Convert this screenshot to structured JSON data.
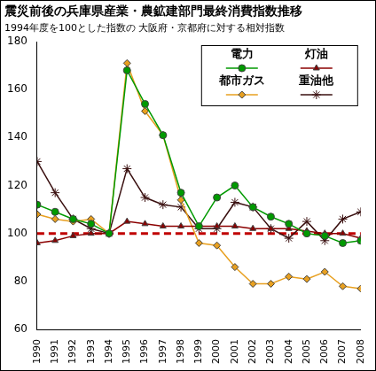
{
  "chart_data": {
    "type": "line",
    "title": "震災前後の兵庫県産業・農鉱建部門最終消費指数推移",
    "subtitle": "1994年度を100とした指数の 大阪府・京都府に対する相対指数",
    "categories": [
      "1990",
      "1991",
      "1992",
      "1993",
      "1994",
      "1995",
      "1996",
      "1997",
      "1998",
      "1999",
      "2000",
      "2001",
      "2002",
      "2003",
      "2004",
      "2005",
      "2006",
      "2007",
      "2008"
    ],
    "series": [
      {
        "name": "電力",
        "color": "#009a00",
        "marker": "circle",
        "values": [
          112,
          109,
          106,
          104,
          100,
          168,
          154,
          141,
          117,
          103,
          115,
          120,
          111,
          107,
          104,
          100,
          99,
          96,
          97
        ]
      },
      {
        "name": "灯油",
        "color": "#8b0000",
        "marker": "triangle",
        "values": [
          96,
          97,
          99,
          100,
          100,
          105,
          104,
          103,
          103,
          103,
          103,
          103,
          102,
          102,
          102,
          101,
          100,
          100,
          98
        ]
      },
      {
        "name": "都市ガス",
        "color": "#e8a020",
        "marker": "diamond",
        "values": [
          108,
          106,
          105,
          106,
          100,
          171,
          151,
          141,
          114,
          96,
          95,
          86,
          79,
          79,
          82,
          81,
          84,
          78,
          77
        ]
      },
      {
        "name": "重油他",
        "color": "#3a1010",
        "marker": "star",
        "values": [
          130,
          117,
          106,
          102,
          100,
          127,
          115,
          112,
          111,
          102,
          102,
          113,
          111,
          102,
          98,
          105,
          97,
          106,
          109
        ]
      }
    ],
    "reference_line": {
      "value": 100,
      "color": "#c00000",
      "line_style": "dashed"
    },
    "ylim": [
      60,
      180
    ],
    "yticks": [
      60,
      80,
      100,
      120,
      140,
      160,
      180
    ],
    "grid": false,
    "legend": "upper right"
  }
}
